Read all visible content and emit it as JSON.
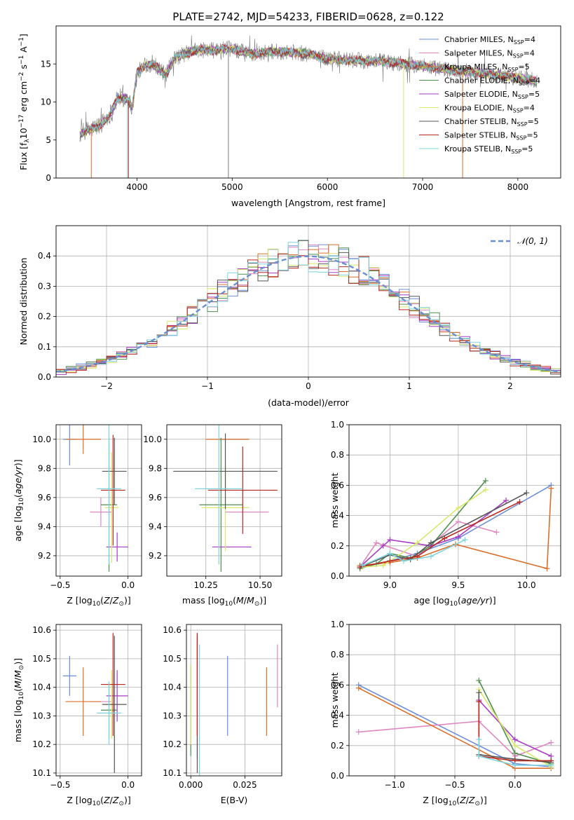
{
  "colors": {
    "chabrier_miles": "#6b8ed8",
    "salpeter_miles": "#de88c0",
    "kroupa_miles": "#d96f2a",
    "chabrier_elodie": "#4e8f4e",
    "salpeter_elodie": "#a63cc4",
    "kroupa_elodie": "#d8e86a",
    "chabrier_stelib": "#555555",
    "salpeter_stelib": "#b8261e",
    "kroupa_stelib": "#7fd4dc",
    "normal": "#6a8fd0"
  },
  "chart_data": [
    {
      "type": "line",
      "title": "PLATE=2742, MJD=54233, FIBERID=0628, z=0.122",
      "xlabel": "wavelength [Angstrom, rest frame]",
      "ylabel": "Flux [f_λ 10^-17 erg cm^-2 s^-1 A^-1]",
      "xlim": [
        3150,
        8450
      ],
      "ylim": [
        0,
        20
      ],
      "xticks": [
        4000,
        5000,
        6000,
        7000,
        8000
      ],
      "yticks": [
        0,
        5,
        10,
        15
      ],
      "spectrum_nodes": [
        [
          3400,
          5.8
        ],
        [
          3500,
          6.3
        ],
        [
          3600,
          6.9
        ],
        [
          3700,
          8.0
        ],
        [
          3800,
          10.5
        ],
        [
          3900,
          10.5
        ],
        [
          3950,
          9.2
        ],
        [
          4000,
          13.8
        ],
        [
          4100,
          15.0
        ],
        [
          4200,
          14.8
        ],
        [
          4300,
          13.5
        ],
        [
          4400,
          15.8
        ],
        [
          4600,
          16.8
        ],
        [
          4800,
          16.8
        ],
        [
          5000,
          17.0
        ],
        [
          5200,
          16.3
        ],
        [
          5400,
          16.6
        ],
        [
          5600,
          16.6
        ],
        [
          5800,
          16.3
        ],
        [
          6000,
          15.7
        ],
        [
          6200,
          15.5
        ],
        [
          6400,
          15.4
        ],
        [
          6600,
          15.3
        ],
        [
          6800,
          15.0
        ],
        [
          7000,
          14.8
        ],
        [
          7200,
          14.3
        ],
        [
          7400,
          14.1
        ],
        [
          7600,
          13.8
        ],
        [
          7800,
          13.5
        ],
        [
          8000,
          13.2
        ],
        [
          8200,
          12.7
        ]
      ],
      "legend": {
        "placement": "top-right",
        "entries": [
          {
            "label": "Chabrier MILES, N",
            "sub": "SSP",
            "tail": "=4",
            "color_key": "chabrier_miles"
          },
          {
            "label": "Salpeter MILES, N",
            "sub": "SSP",
            "tail": "=4",
            "color_key": "salpeter_miles"
          },
          {
            "label": "Kroupa MILES, N",
            "sub": "SSP",
            "tail": "=5",
            "color_key": "kroupa_miles"
          },
          {
            "label": "Chabrier ELODIE, N",
            "sub": "SSP",
            "tail": "=4",
            "color_key": "chabrier_elodie"
          },
          {
            "label": "Salpeter ELODIE, N",
            "sub": "SSP",
            "tail": "=5",
            "color_key": "salpeter_elodie"
          },
          {
            "label": "Kroupa ELODIE, N",
            "sub": "SSP",
            "tail": "=4",
            "color_key": "kroupa_elodie"
          },
          {
            "label": "Chabrier STELIB, N",
            "sub": "SSP",
            "tail": "=5",
            "color_key": "chabrier_stelib"
          },
          {
            "label": "Salpeter STELIB, N",
            "sub": "SSP",
            "tail": "=5",
            "color_key": "salpeter_stelib"
          },
          {
            "label": "Kroupa STELIB, N",
            "sub": "SSP",
            "tail": "=5",
            "color_key": "kroupa_stelib"
          }
        ]
      }
    },
    {
      "type": "histogram",
      "xlabel": "(data-model)/error",
      "ylabel": "Normed distribution",
      "xlim": [
        -2.5,
        2.5
      ],
      "ylim": [
        0,
        0.5
      ],
      "xticks": [
        -2,
        -1,
        0,
        1,
        2
      ],
      "yticks": [
        0.0,
        0.1,
        0.2,
        0.3,
        0.4
      ],
      "bin_width": 0.1,
      "normal_curve": {
        "label": "𝒩(0, 1)",
        "mean": 0,
        "sigma": 1
      },
      "legend": {
        "placement": "top-right"
      }
    },
    {
      "type": "scatter",
      "xlabel": "Z [log10(Z/Z⊙)]",
      "ylabel": "age [log10(age/yr)]",
      "xlim": [
        -0.53,
        0.1
      ],
      "ylim": [
        9.06,
        10.1
      ],
      "xticks": [
        -0.5,
        0.0
      ],
      "yticks": [
        9.2,
        9.4,
        9.6,
        9.8,
        10.0
      ],
      "points": [
        {
          "model": "chabrier_miles",
          "x": -0.43,
          "xerr": 0.05,
          "y": 10.0,
          "yerr": 0.18
        },
        {
          "model": "salpeter_miles",
          "x": -0.2,
          "xerr": 0.08,
          "y": 9.5,
          "yerr": 0.1
        },
        {
          "model": "kroupa_miles",
          "x": -0.33,
          "xerr": 0.13,
          "y": 10.0,
          "yerr": 0.1
        },
        {
          "model": "chabrier_elodie",
          "x": -0.14,
          "xerr": 0.06,
          "y": 9.55,
          "yerr": 0.46
        },
        {
          "model": "salpeter_elodie",
          "x": -0.08,
          "xerr": 0.08,
          "y": 9.26,
          "yerr": 0.1
        },
        {
          "model": "kroupa_elodie",
          "x": -0.12,
          "xerr": 0.05,
          "y": 9.53,
          "yerr": 0.38
        },
        {
          "model": "chabrier_stelib",
          "x": -0.1,
          "xerr": 0.09,
          "y": 9.78,
          "yerr": 0.23
        },
        {
          "model": "salpeter_stelib",
          "x": -0.11,
          "xerr": 0.09,
          "y": 9.65,
          "yerr": 0.38
        },
        {
          "model": "kroupa_stelib",
          "x": -0.14,
          "xerr": 0.09,
          "y": 9.66,
          "yerr": 0.52
        }
      ]
    },
    {
      "type": "scatter",
      "xlabel": "mass [log10(M/M⊙)]",
      "ylabel": "",
      "xlim": [
        10.07,
        10.6
      ],
      "ylim": [
        9.06,
        10.1
      ],
      "xticks": [
        10.25,
        10.5
      ],
      "yticks": [
        9.2,
        9.4,
        9.6,
        9.8,
        10.0
      ],
      "points": [
        {
          "model": "chabrier_miles",
          "x": 10.37,
          "xerr": 0.07,
          "y": 10.0,
          "yerr": 0.0
        },
        {
          "model": "salpeter_miles",
          "x": 10.44,
          "xerr": 0.1,
          "y": 9.5,
          "yerr": 0.0
        },
        {
          "model": "kroupa_miles",
          "x": 10.35,
          "xerr": 0.1,
          "y": 10.0,
          "yerr": 0.0
        },
        {
          "model": "chabrier_elodie",
          "x": 10.32,
          "xerr": 0.1,
          "y": 9.55,
          "yerr": 0.46
        },
        {
          "model": "salpeter_elodie",
          "x": 10.37,
          "xerr": 0.09,
          "y": 9.26,
          "yerr": 0.0
        },
        {
          "model": "kroupa_elodie",
          "x": 10.34,
          "xerr": 0.11,
          "y": 9.53,
          "yerr": 0.3
        },
        {
          "model": "chabrier_stelib",
          "x": 10.34,
          "xerr": 0.24,
          "y": 9.78,
          "yerr": 0.26
        },
        {
          "model": "salpeter_stelib",
          "x": 10.42,
          "xerr": 0.16,
          "y": 9.65,
          "yerr": 0.3
        },
        {
          "model": "kroupa_stelib",
          "x": 10.31,
          "xerr": 0.11,
          "y": 9.66,
          "yerr": 0.52
        }
      ]
    },
    {
      "type": "line",
      "xlabel": "age [log10(age/yr)]",
      "ylabel": "mass weight",
      "xlim": [
        8.7,
        10.25
      ],
      "ylim": [
        0,
        1
      ],
      "xticks": [
        9.0,
        9.5,
        10.0
      ],
      "yticks": [
        0.0,
        0.2,
        0.4,
        0.6,
        0.8,
        1.0
      ],
      "series": [
        {
          "model": "chabrier_miles",
          "x": [
            8.78,
            9.0,
            9.2,
            9.5,
            10.18
          ],
          "y": [
            0.06,
            0.1,
            0.15,
            0.25,
            0.6
          ]
        },
        {
          "model": "salpeter_miles",
          "x": [
            8.78,
            8.9,
            9.2,
            9.5,
            9.78
          ],
          "y": [
            0.06,
            0.22,
            0.13,
            0.36,
            0.29
          ]
        },
        {
          "model": "kroupa_miles",
          "x": [
            8.78,
            9.0,
            9.2,
            9.48,
            10.15,
            10.18
          ],
          "y": [
            0.07,
            0.09,
            0.12,
            0.21,
            0.05,
            0.58
          ]
        },
        {
          "model": "chabrier_elodie",
          "x": [
            8.78,
            8.9,
            9.0,
            9.15,
            9.3,
            9.7
          ],
          "y": [
            0.05,
            0.08,
            0.15,
            0.12,
            0.2,
            0.63
          ]
        },
        {
          "model": "salpeter_elodie",
          "x": [
            8.78,
            8.95,
            9.0,
            9.3,
            9.5,
            9.85
          ],
          "y": [
            0.06,
            0.2,
            0.24,
            0.2,
            0.26,
            0.5
          ]
        },
        {
          "model": "kroupa_elodie",
          "x": [
            8.8,
            8.95,
            9.2,
            9.5,
            9.7
          ],
          "y": [
            0.06,
            0.07,
            0.22,
            0.45,
            0.57
          ]
        },
        {
          "model": "chabrier_stelib",
          "x": [
            8.78,
            9.0,
            9.15,
            9.3,
            10.0
          ],
          "y": [
            0.06,
            0.14,
            0.11,
            0.22,
            0.55
          ]
        },
        {
          "model": "salpeter_stelib",
          "x": [
            8.78,
            9.0,
            9.2,
            9.4,
            9.95
          ],
          "y": [
            0.06,
            0.1,
            0.13,
            0.25,
            0.49
          ]
        },
        {
          "model": "kroupa_stelib",
          "x": [
            8.8,
            9.0,
            9.1,
            9.3,
            9.55
          ],
          "y": [
            0.07,
            0.15,
            0.1,
            0.13,
            0.24
          ]
        }
      ]
    },
    {
      "type": "scatter",
      "xlabel": "Z [log10(Z/Z⊙)]",
      "ylabel": "mass [log10(M/M⊙)]",
      "xlim": [
        -0.53,
        0.1
      ],
      "ylim": [
        10.09,
        10.62
      ],
      "xticks": [
        -0.5,
        0.0
      ],
      "yticks": [
        10.1,
        10.2,
        10.3,
        10.4,
        10.5,
        10.6
      ],
      "points": [
        {
          "model": "chabrier_miles",
          "x": -0.43,
          "xerr": 0.05,
          "y": 10.44,
          "yerr": 0.07
        },
        {
          "model": "salpeter_miles",
          "x": -0.2,
          "xerr": 0.08,
          "y": 10.35,
          "yerr": 0.0
        },
        {
          "model": "kroupa_miles",
          "x": -0.33,
          "xerr": 0.13,
          "y": 10.35,
          "yerr": 0.12
        },
        {
          "model": "chabrier_elodie",
          "x": -0.14,
          "xerr": 0.06,
          "y": 10.32,
          "yerr": 0.1
        },
        {
          "model": "salpeter_elodie",
          "x": -0.08,
          "xerr": 0.08,
          "y": 10.37,
          "yerr": 0.09
        },
        {
          "model": "kroupa_elodie",
          "x": -0.12,
          "xerr": 0.05,
          "y": 10.34,
          "yerr": 0.12
        },
        {
          "model": "chabrier_stelib",
          "x": -0.1,
          "xerr": 0.09,
          "y": 10.34,
          "yerr": 0.24
        },
        {
          "model": "salpeter_stelib",
          "x": -0.11,
          "xerr": 0.09,
          "y": 10.41,
          "yerr": 0.18
        },
        {
          "model": "kroupa_stelib",
          "x": -0.14,
          "xerr": 0.09,
          "y": 10.31,
          "yerr": 0.11
        }
      ]
    },
    {
      "type": "errorbar",
      "xlabel": "E(B-V)",
      "ylabel": "",
      "xlim": [
        -0.002,
        0.042
      ],
      "ylim": [
        10.09,
        10.62
      ],
      "xticks": [
        0.0,
        0.025
      ],
      "yticks": [
        10.1,
        10.2,
        10.3,
        10.4,
        10.5,
        10.6
      ],
      "points": [
        {
          "model": "chabrier_miles",
          "x": 0.017,
          "y": 10.37,
          "yerr": 0.14
        },
        {
          "model": "salpeter_miles",
          "x": 0.04,
          "y": 10.44,
          "yerr": 0.11
        },
        {
          "model": "kroupa_miles",
          "x": 0.035,
          "y": 10.35,
          "yerr": 0.12
        },
        {
          "model": "chabrier_elodie",
          "x": 0.0,
          "y": 10.32,
          "yerr": 0.16
        },
        {
          "model": "salpeter_elodie",
          "x": 0.003,
          "y": 10.37,
          "yerr": 0.22
        },
        {
          "model": "kroupa_elodie",
          "x": 0.0,
          "y": 10.34,
          "yerr": 0.14
        },
        {
          "model": "chabrier_stelib",
          "x": 0.003,
          "y": 10.34,
          "yerr": 0.24
        },
        {
          "model": "salpeter_stelib",
          "x": 0.003,
          "y": 10.41,
          "yerr": 0.18
        },
        {
          "model": "kroupa_stelib",
          "x": 0.004,
          "y": 10.31,
          "yerr": 0.24
        }
      ]
    },
    {
      "type": "line",
      "xlabel": "Z [log10(Z/Z⊙)]",
      "ylabel": "mass weight",
      "xlim": [
        -1.38,
        0.38
      ],
      "ylim": [
        0,
        1
      ],
      "xticks": [
        -1.0,
        -0.5,
        0.0
      ],
      "yticks": [
        0.0,
        0.2,
        0.4,
        0.6,
        0.8,
        1.0
      ],
      "series": [
        {
          "model": "chabrier_miles",
          "x": [
            -1.3,
            0.0,
            0.3
          ],
          "y": [
            0.6,
            0.08,
            0.06
          ]
        },
        {
          "model": "salpeter_miles",
          "x": [
            -1.3,
            -0.3,
            0.0,
            0.3
          ],
          "y": [
            0.29,
            0.36,
            0.13,
            0.22
          ]
        },
        {
          "model": "kroupa_miles",
          "x": [
            -1.3,
            0.0,
            0.3
          ],
          "y": [
            0.58,
            0.05,
            0.05
          ]
        },
        {
          "model": "chabrier_elodie",
          "x": [
            -0.3,
            0.0,
            0.3
          ],
          "y": [
            0.63,
            0.15,
            0.08
          ]
        },
        {
          "model": "salpeter_elodie",
          "x": [
            -0.3,
            0.0,
            0.3
          ],
          "y": [
            0.5,
            0.24,
            0.13
          ]
        },
        {
          "model": "kroupa_elodie",
          "x": [
            -0.3,
            0.0,
            0.3
          ],
          "y": [
            0.57,
            0.2,
            0.06
          ]
        },
        {
          "model": "chabrier_stelib",
          "x": [
            -0.3,
            -0.3,
            0.0,
            0.3
          ],
          "y": [
            0.55,
            0.14,
            0.11,
            0.09
          ]
        },
        {
          "model": "salpeter_stelib",
          "x": [
            -0.3,
            -0.3,
            0.0,
            0.3
          ],
          "y": [
            0.49,
            0.13,
            0.1,
            0.1
          ]
        },
        {
          "model": "kroupa_stelib",
          "x": [
            -0.3,
            -0.3,
            0.0,
            0.3
          ],
          "y": [
            0.24,
            0.13,
            0.07,
            0.07
          ]
        }
      ]
    }
  ]
}
